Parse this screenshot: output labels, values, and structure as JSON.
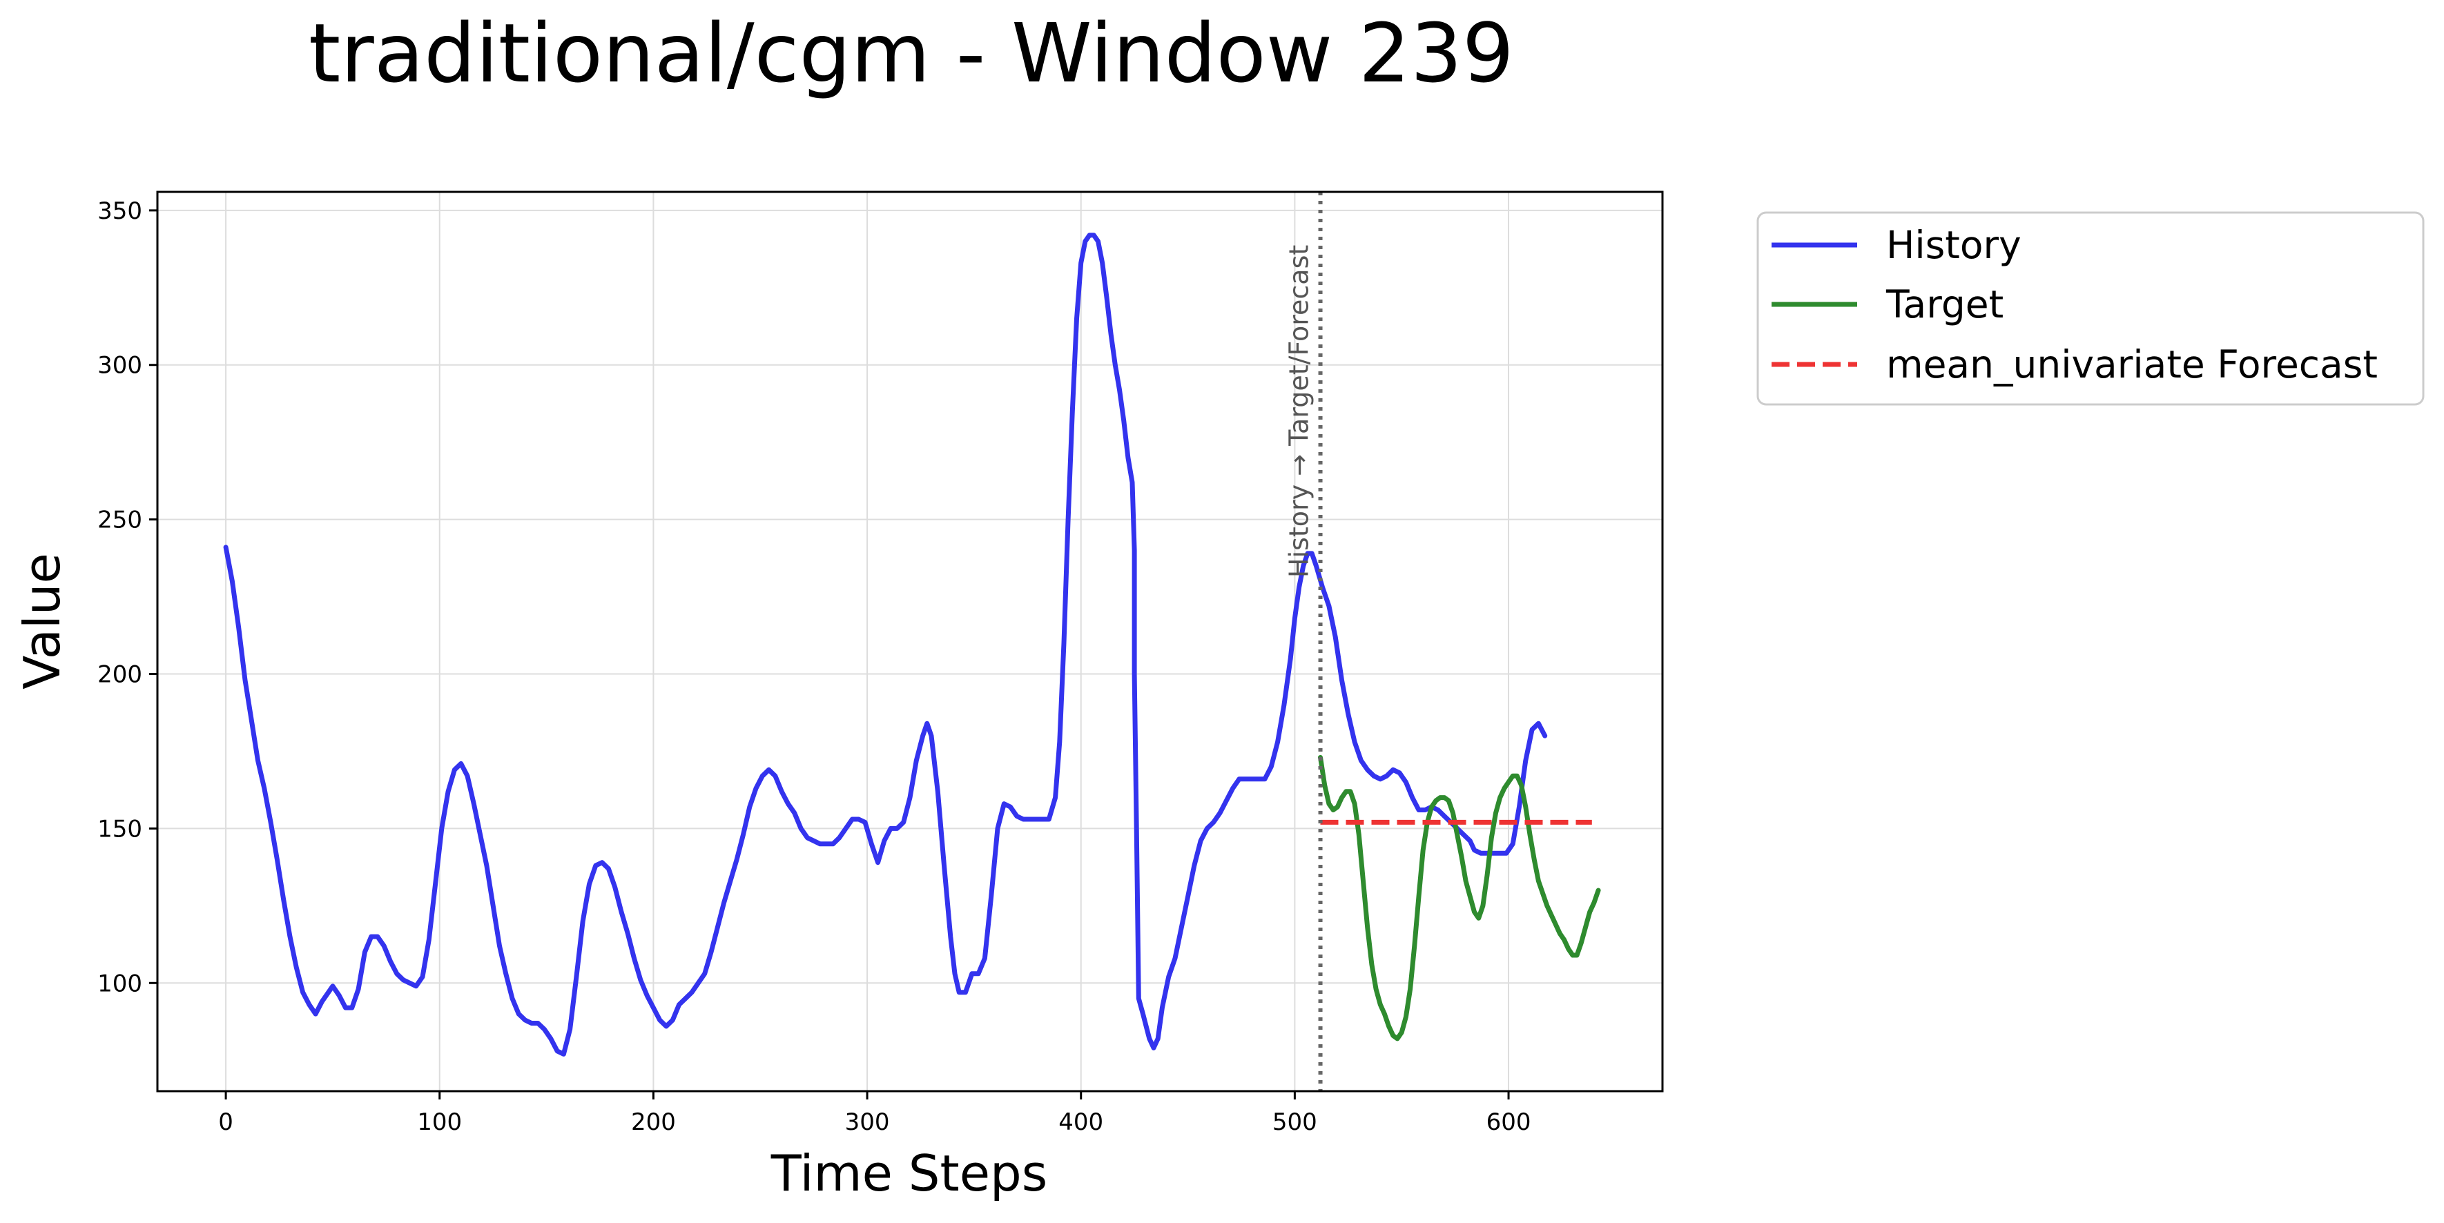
{
  "chart_data": {
    "type": "line",
    "title": "traditional/cgm - Window 239",
    "xlabel": "Time Steps",
    "ylabel": "Value",
    "xlim": [
      -32,
      672
    ],
    "ylim": [
      65,
      356
    ],
    "xticks": [
      0,
      100,
      200,
      300,
      400,
      500,
      600
    ],
    "yticks": [
      100,
      150,
      200,
      250,
      300,
      350
    ],
    "grid": true,
    "legend": {
      "placement": "outside-top-right"
    },
    "split": {
      "x": 512,
      "label": "History → Target/Forecast",
      "color": "#666666"
    },
    "series": [
      {
        "name": "History",
        "color": "#3333ee",
        "style": "solid",
        "points": [
          [
            0,
            241
          ],
          [
            3,
            230
          ],
          [
            6,
            215
          ],
          [
            9,
            198
          ],
          [
            12,
            185
          ],
          [
            15,
            172
          ],
          [
            18,
            163
          ],
          [
            21,
            152
          ],
          [
            24,
            140
          ],
          [
            27,
            127
          ],
          [
            30,
            115
          ],
          [
            33,
            105
          ],
          [
            36,
            97
          ],
          [
            39,
            93
          ],
          [
            42,
            90
          ],
          [
            45,
            94
          ],
          [
            48,
            97
          ],
          [
            50,
            99
          ],
          [
            53,
            96
          ],
          [
            56,
            92
          ],
          [
            59,
            92
          ],
          [
            62,
            98
          ],
          [
            65,
            110
          ],
          [
            68,
            115
          ],
          [
            71,
            115
          ],
          [
            74,
            112
          ],
          [
            77,
            107
          ],
          [
            80,
            103
          ],
          [
            83,
            101
          ],
          [
            86,
            100
          ],
          [
            89,
            99
          ],
          [
            92,
            102
          ],
          [
            95,
            114
          ],
          [
            98,
            132
          ],
          [
            101,
            150
          ],
          [
            104,
            162
          ],
          [
            107,
            169
          ],
          [
            110,
            171
          ],
          [
            113,
            167
          ],
          [
            116,
            158
          ],
          [
            119,
            148
          ],
          [
            122,
            138
          ],
          [
            125,
            125
          ],
          [
            128,
            112
          ],
          [
            131,
            103
          ],
          [
            134,
            95
          ],
          [
            137,
            90
          ],
          [
            140,
            88
          ],
          [
            143,
            87
          ],
          [
            146,
            87
          ],
          [
            149,
            85
          ],
          [
            152,
            82
          ],
          [
            155,
            78
          ],
          [
            158,
            77
          ],
          [
            161,
            85
          ],
          [
            164,
            102
          ],
          [
            167,
            120
          ],
          [
            170,
            132
          ],
          [
            173,
            138
          ],
          [
            176,
            139
          ],
          [
            179,
            137
          ],
          [
            182,
            131
          ],
          [
            185,
            123
          ],
          [
            188,
            116
          ],
          [
            191,
            108
          ],
          [
            194,
            101
          ],
          [
            197,
            96
          ],
          [
            200,
            92
          ],
          [
            203,
            88
          ],
          [
            206,
            86
          ],
          [
            209,
            88
          ],
          [
            212,
            93
          ],
          [
            215,
            95
          ],
          [
            218,
            97
          ],
          [
            221,
            100
          ],
          [
            224,
            103
          ],
          [
            227,
            110
          ],
          [
            230,
            118
          ],
          [
            233,
            126
          ],
          [
            236,
            133
          ],
          [
            239,
            140
          ],
          [
            242,
            148
          ],
          [
            245,
            157
          ],
          [
            248,
            163
          ],
          [
            251,
            167
          ],
          [
            254,
            169
          ],
          [
            257,
            167
          ],
          [
            260,
            162
          ],
          [
            263,
            158
          ],
          [
            266,
            155
          ],
          [
            269,
            150
          ],
          [
            272,
            147
          ],
          [
            275,
            146
          ],
          [
            278,
            145
          ],
          [
            281,
            145
          ],
          [
            284,
            145
          ],
          [
            287,
            147
          ],
          [
            290,
            150
          ],
          [
            293,
            153
          ],
          [
            296,
            153
          ],
          [
            299,
            152
          ],
          [
            302,
            145
          ],
          [
            305,
            139
          ],
          [
            308,
            146
          ],
          [
            311,
            150
          ],
          [
            314,
            150
          ],
          [
            317,
            152
          ],
          [
            320,
            160
          ],
          [
            323,
            172
          ],
          [
            326,
            180
          ],
          [
            328,
            184
          ],
          [
            330,
            180
          ],
          [
            333,
            162
          ],
          [
            336,
            138
          ],
          [
            339,
            115
          ],
          [
            341,
            103
          ],
          [
            343,
            97
          ],
          [
            346,
            97
          ],
          [
            349,
            103
          ],
          [
            352,
            103
          ],
          [
            355,
            108
          ],
          [
            358,
            128
          ],
          [
            361,
            150
          ],
          [
            364,
            158
          ],
          [
            367,
            157
          ],
          [
            370,
            154
          ],
          [
            373,
            153
          ],
          [
            376,
            153
          ],
          [
            379,
            153
          ],
          [
            382,
            153
          ],
          [
            385,
            153
          ],
          [
            388,
            160
          ],
          [
            390,
            178
          ],
          [
            392,
            210
          ],
          [
            394,
            250
          ],
          [
            396,
            285
          ],
          [
            398,
            315
          ],
          [
            400,
            333
          ],
          [
            402,
            340
          ],
          [
            404,
            342
          ],
          [
            406,
            342
          ],
          [
            408,
            340
          ],
          [
            410,
            333
          ],
          [
            412,
            322
          ],
          [
            414,
            310
          ],
          [
            416,
            300
          ],
          [
            418,
            292
          ],
          [
            420,
            282
          ],
          [
            422,
            270
          ],
          [
            424,
            262
          ],
          [
            425,
            240
          ],
          [
            425,
            200
          ],
          [
            426,
            150
          ],
          [
            427,
            95
          ],
          [
            429,
            90
          ],
          [
            432,
            82
          ],
          [
            434,
            79
          ],
          [
            436,
            82
          ],
          [
            438,
            92
          ],
          [
            441,
            102
          ],
          [
            444,
            108
          ],
          [
            447,
            118
          ],
          [
            450,
            128
          ],
          [
            453,
            138
          ],
          [
            456,
            146
          ],
          [
            459,
            150
          ],
          [
            462,
            152
          ],
          [
            465,
            155
          ],
          [
            468,
            159
          ],
          [
            471,
            163
          ],
          [
            474,
            166
          ],
          [
            477,
            166
          ],
          [
            480,
            166
          ],
          [
            483,
            166
          ],
          [
            486,
            166
          ],
          [
            489,
            170
          ],
          [
            492,
            178
          ],
          [
            495,
            190
          ],
          [
            498,
            205
          ],
          [
            500,
            218
          ],
          [
            502,
            228
          ],
          [
            504,
            235
          ],
          [
            506,
            239
          ],
          [
            508,
            239
          ],
          [
            510,
            235
          ],
          [
            513,
            228
          ],
          [
            516,
            222
          ],
          [
            519,
            212
          ],
          [
            522,
            198
          ],
          [
            525,
            187
          ],
          [
            528,
            178
          ],
          [
            531,
            172
          ],
          [
            534,
            169
          ],
          [
            537,
            167
          ],
          [
            540,
            166
          ],
          [
            543,
            167
          ],
          [
            546,
            169
          ],
          [
            549,
            168
          ],
          [
            552,
            165
          ],
          [
            555,
            160
          ],
          [
            558,
            156
          ],
          [
            561,
            156
          ],
          [
            564,
            157
          ],
          [
            567,
            156
          ],
          [
            570,
            154
          ],
          [
            573,
            152
          ],
          [
            576,
            150
          ],
          [
            579,
            148
          ],
          [
            582,
            146
          ],
          [
            584,
            143
          ],
          [
            587,
            142
          ],
          [
            590,
            142
          ],
          [
            593,
            142
          ],
          [
            596,
            142
          ],
          [
            599,
            142
          ],
          [
            602,
            145
          ],
          [
            605,
            157
          ],
          [
            608,
            172
          ],
          [
            611,
            182
          ],
          [
            614,
            184
          ],
          [
            617,
            180
          ]
        ]
      },
      {
        "name": "Target",
        "color": "#2e8b2e",
        "style": "solid",
        "points": [
          [
            512,
            173
          ],
          [
            514,
            164
          ],
          [
            516,
            158
          ],
          [
            518,
            156
          ],
          [
            520,
            157
          ],
          [
            522,
            160
          ],
          [
            524,
            162
          ],
          [
            526,
            162
          ],
          [
            528,
            158
          ],
          [
            530,
            148
          ],
          [
            532,
            133
          ],
          [
            534,
            118
          ],
          [
            536,
            106
          ],
          [
            538,
            98
          ],
          [
            540,
            93
          ],
          [
            542,
            90
          ],
          [
            544,
            86
          ],
          [
            546,
            83
          ],
          [
            548,
            82
          ],
          [
            550,
            84
          ],
          [
            552,
            89
          ],
          [
            554,
            98
          ],
          [
            556,
            112
          ],
          [
            558,
            128
          ],
          [
            560,
            143
          ],
          [
            562,
            152
          ],
          [
            564,
            157
          ],
          [
            566,
            159
          ],
          [
            568,
            160
          ],
          [
            570,
            160
          ],
          [
            572,
            159
          ],
          [
            574,
            155
          ],
          [
            576,
            148
          ],
          [
            578,
            141
          ],
          [
            580,
            133
          ],
          [
            582,
            128
          ],
          [
            584,
            123
          ],
          [
            586,
            121
          ],
          [
            588,
            125
          ],
          [
            590,
            135
          ],
          [
            592,
            147
          ],
          [
            594,
            155
          ],
          [
            596,
            160
          ],
          [
            598,
            163
          ],
          [
            600,
            165
          ],
          [
            602,
            167
          ],
          [
            604,
            167
          ],
          [
            606,
            164
          ],
          [
            608,
            157
          ],
          [
            610,
            148
          ],
          [
            612,
            140
          ],
          [
            614,
            133
          ],
          [
            616,
            129
          ],
          [
            618,
            125
          ],
          [
            620,
            122
          ],
          [
            622,
            119
          ],
          [
            624,
            116
          ],
          [
            626,
            114
          ],
          [
            628,
            111
          ],
          [
            630,
            109
          ],
          [
            632,
            109
          ],
          [
            634,
            113
          ],
          [
            636,
            118
          ],
          [
            638,
            123
          ],
          [
            640,
            126
          ],
          [
            642,
            130
          ]
        ]
      },
      {
        "name": "mean_univariate Forecast",
        "color": "#ee3333",
        "style": "dashed",
        "points": [
          [
            512,
            152
          ],
          [
            639,
            152
          ]
        ]
      }
    ]
  }
}
